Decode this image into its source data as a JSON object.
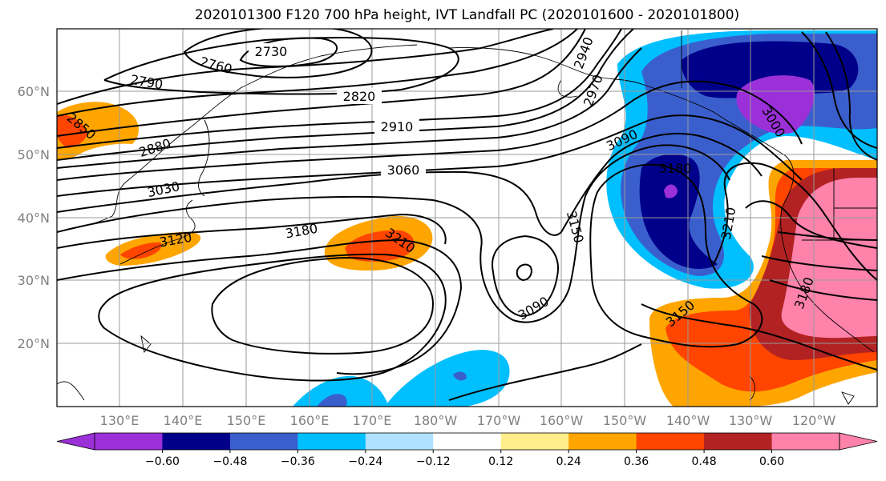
{
  "title": "2020101300 F120 700 hPa height, IVT Landfall PC (2020101600 - 2020101800)",
  "map": {
    "lat_ticks": [
      "60°N",
      "50°N",
      "40°N",
      "30°N",
      "20°N"
    ],
    "lon_ticks": [
      "130°E",
      "140°E",
      "150°E",
      "160°E",
      "170°E",
      "180°W",
      "170°W",
      "160°W",
      "150°W",
      "140°W",
      "130°W",
      "120°W"
    ],
    "contour_labels": [
      "2730",
      "2760",
      "2790",
      "2820",
      "2850",
      "2880",
      "2910",
      "2940",
      "2970",
      "3000",
      "3030",
      "3060",
      "3090",
      "3090",
      "3120",
      "3150",
      "3150",
      "3180",
      "3180",
      "3180",
      "3210",
      "3210"
    ]
  },
  "colorbar": {
    "colors": [
      "#9b30d9",
      "#00008b",
      "#3a5fcd",
      "#00bfff",
      "#b0e2ff",
      "#ffffff",
      "#ffec8b",
      "#ffa500",
      "#ff4500",
      "#b22222",
      "#ff82ab"
    ],
    "tick_labels": [
      "−0.60",
      "−0.48",
      "−0.36",
      "−0.24",
      "−0.12",
      "0.12",
      "0.24",
      "0.36",
      "0.48",
      "0.60"
    ]
  }
}
